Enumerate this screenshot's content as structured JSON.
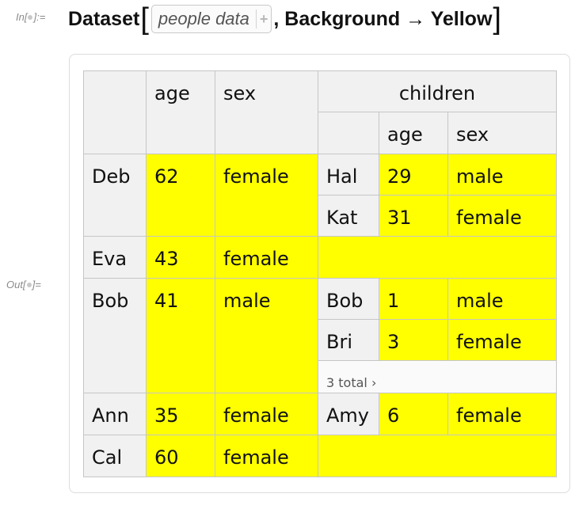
{
  "input": {
    "label": "In[",
    "label_end": "]:=",
    "function_name": "Dataset",
    "chip_text": "people data",
    "option_text": ", Background → Yellow"
  },
  "output": {
    "label": "Out[",
    "label_end": "]="
  },
  "table": {
    "highlight_color": "#ffff00",
    "headers": {
      "age": "age",
      "sex": "sex",
      "children": "children",
      "child_age": "age",
      "child_sex": "sex"
    },
    "rows": [
      {
        "name": "Deb",
        "age": "62",
        "sex": "female",
        "children": [
          {
            "name": "Hal",
            "age": "29",
            "sex": "male"
          },
          {
            "name": "Kat",
            "age": "31",
            "sex": "female"
          }
        ]
      },
      {
        "name": "Eva",
        "age": "43",
        "sex": "female",
        "children": []
      },
      {
        "name": "Bob",
        "age": "41",
        "sex": "male",
        "children": [
          {
            "name": "Bob",
            "age": "1",
            "sex": "male"
          },
          {
            "name": "Bri",
            "age": "3",
            "sex": "female"
          }
        ],
        "children_total": "3 total ›"
      },
      {
        "name": "Ann",
        "age": "35",
        "sex": "female",
        "children": [
          {
            "name": "Amy",
            "age": "6",
            "sex": "female"
          }
        ]
      },
      {
        "name": "Cal",
        "age": "60",
        "sex": "female",
        "children": []
      }
    ]
  }
}
